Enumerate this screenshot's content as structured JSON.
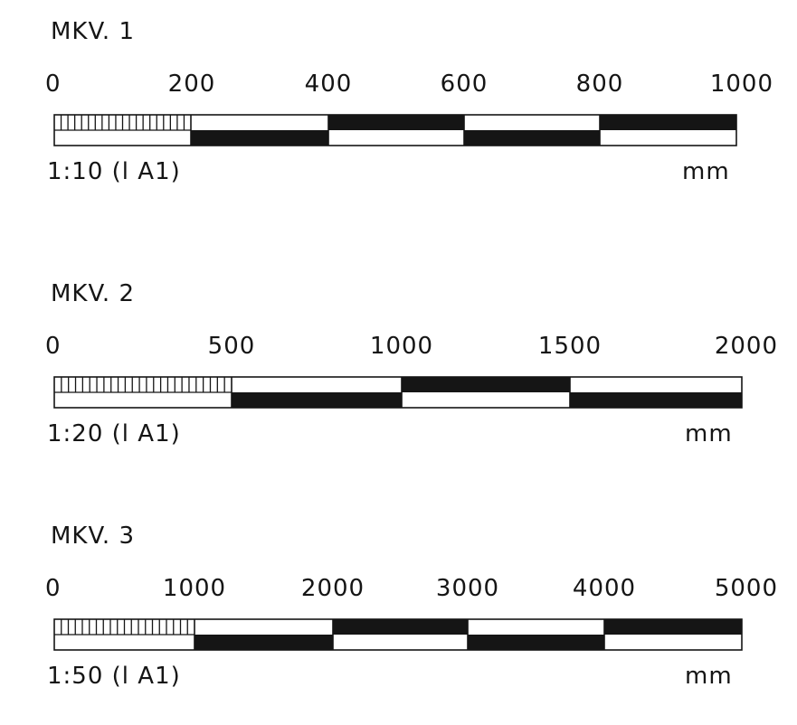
{
  "colors": {
    "ink": "#151515",
    "paper": "#ffffff"
  },
  "scales": [
    {
      "title": "MKV. 1",
      "ticks": [
        "0",
        "200",
        "400",
        "600",
        "800",
        "1000"
      ],
      "ratio": "1:10  (l A1)",
      "unit": "mm",
      "max": 1000,
      "segment": 200,
      "fine_divisions": 20
    },
    {
      "title": "MKV. 2",
      "ticks": [
        "0",
        "500",
        "1000",
        "1500",
        "2000"
      ],
      "ratio": "1:20  (l A1)",
      "unit": "mm",
      "max": 2000,
      "segment": 500,
      "fine_divisions": 25
    },
    {
      "title": "MKV. 3",
      "ticks": [
        "0",
        "1000",
        "2000",
        "3000",
        "4000",
        "5000"
      ],
      "ratio": "1:50  (l A1)",
      "unit": "mm",
      "max": 5000,
      "segment": 1000,
      "fine_divisions": 20
    }
  ]
}
